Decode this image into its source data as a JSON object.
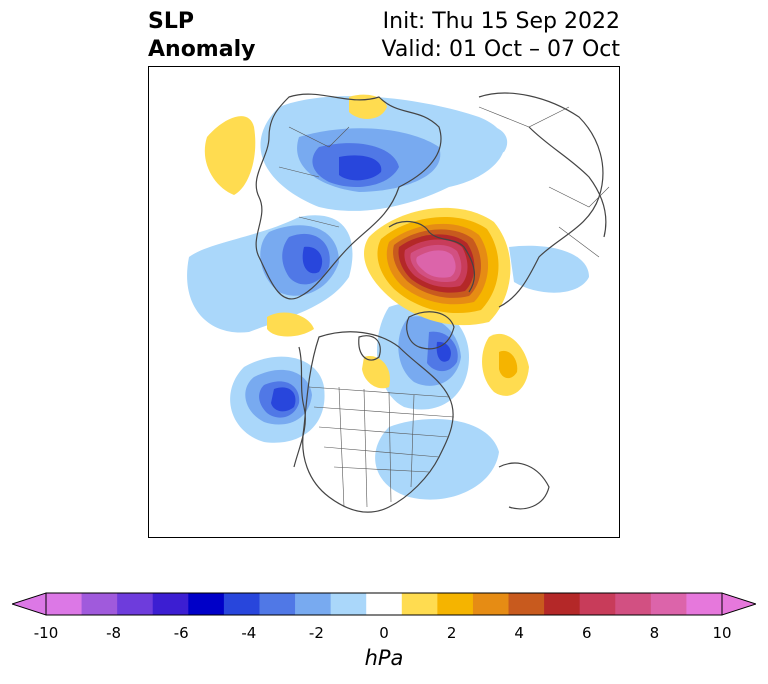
{
  "header": {
    "title_line1": "SLP",
    "title_line2": "Anomaly",
    "init_text": "Init: Thu 15 Sep 2022",
    "valid_text": "Valid: 01 Oct – 07 Oct"
  },
  "map": {
    "projection": "north-polar stereographic",
    "variable": "sea level pressure anomaly"
  },
  "colorbar": {
    "unit": "hPa",
    "ticks": [
      "-10",
      "-8",
      "-6",
      "-4",
      "-2",
      "0",
      "2",
      "4",
      "6",
      "8",
      "10"
    ],
    "levels": [
      -10,
      -9,
      -8,
      -7,
      -6,
      -5,
      -4,
      -3,
      -2,
      -1,
      1,
      2,
      3,
      4,
      5,
      6,
      7,
      8,
      9,
      10
    ],
    "under_color": "#dc78e6",
    "over_color": "#e678dc",
    "colors": [
      "#dc78e6",
      "#a05adc",
      "#6e3cdc",
      "#3c1ed2",
      "#0000c8",
      "#2846dc",
      "#5078e6",
      "#78aaf0",
      "#aad7fa",
      "#ffffff",
      "#ffdc50",
      "#f5b400",
      "#e68c14",
      "#c85a1e",
      "#b42828",
      "#c83c5a",
      "#d25082",
      "#dc64aa",
      "#e678dc"
    ]
  }
}
